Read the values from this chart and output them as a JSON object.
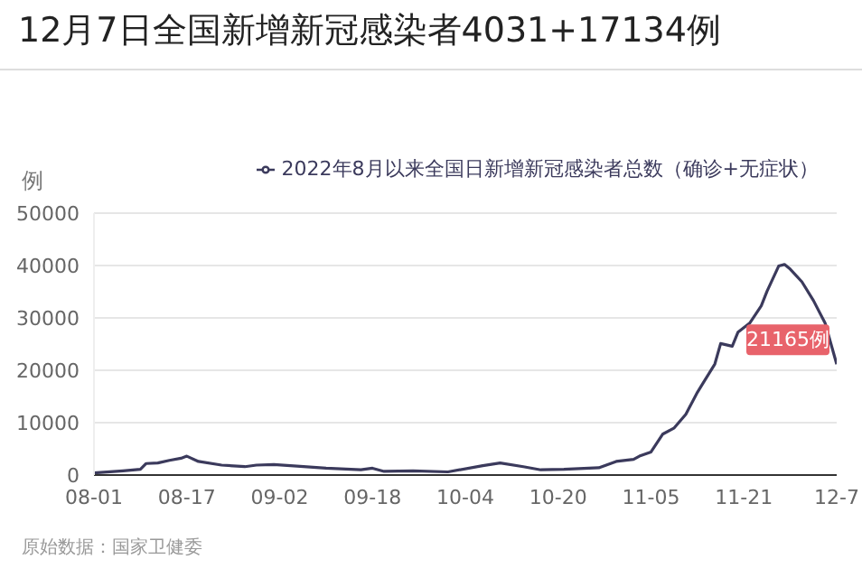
{
  "chart_data": {
    "type": "line",
    "title": "12月7日全国新增新冠感染者4031+17134例",
    "ylabel": "例",
    "x": [
      "2022-08-01",
      "2022-08-06",
      "2022-08-09",
      "2022-08-10",
      "2022-08-12",
      "2022-08-14",
      "2022-08-16",
      "2022-08-17",
      "2022-08-19",
      "2022-08-23",
      "2022-08-27",
      "2022-08-29",
      "2022-09-01",
      "2022-09-05",
      "2022-09-10",
      "2022-09-16",
      "2022-09-18",
      "2022-09-20",
      "2022-09-25",
      "2022-10-01",
      "2022-10-07",
      "2022-10-10",
      "2022-10-14",
      "2022-10-17",
      "2022-10-21",
      "2022-10-27",
      "2022-10-30",
      "2022-11-02",
      "2022-11-03",
      "2022-11-05",
      "2022-11-07",
      "2022-11-09",
      "2022-11-11",
      "2022-11-13",
      "2022-11-14",
      "2022-11-16",
      "2022-11-17",
      "2022-11-19",
      "2022-11-20",
      "2022-11-22",
      "2022-11-24",
      "2022-11-25",
      "2022-11-27",
      "2022-11-28",
      "2022-11-29",
      "2022-12-01",
      "2022-12-03",
      "2022-12-05",
      "2022-12-07"
    ],
    "series": [
      {
        "name": "2022年8月以来全国日新增新冠感染者总数（确诊+无症状）",
        "color": "#3b3a5c",
        "values": [
          400,
          800,
          1100,
          2200,
          2300,
          2800,
          3200,
          3600,
          2600,
          1900,
          1600,
          1900,
          2000,
          1700,
          1300,
          1000,
          1300,
          700,
          800,
          600,
          1800,
          2300,
          1600,
          1000,
          1100,
          1400,
          2600,
          3000,
          3600,
          4400,
          7800,
          9000,
          11600,
          15800,
          17600,
          21200,
          25100,
          24600,
          27300,
          29000,
          32300,
          35100,
          39900,
          40200,
          39300,
          36900,
          33300,
          29000,
          21165
        ]
      }
    ],
    "xlim": [
      "2022-08-01",
      "2022-12-07"
    ],
    "xticks": [
      {
        "value": "2022-08-01",
        "label": "08-01"
      },
      {
        "value": "2022-08-17",
        "label": "08-17"
      },
      {
        "value": "2022-09-02",
        "label": "09-02"
      },
      {
        "value": "2022-09-18",
        "label": "09-18"
      },
      {
        "value": "2022-10-04",
        "label": "10-04"
      },
      {
        "value": "2022-10-20",
        "label": "10-20"
      },
      {
        "value": "2022-11-05",
        "label": "11-05"
      },
      {
        "value": "2022-11-21",
        "label": "11-21"
      },
      {
        "value": "2022-12-07",
        "label": "12-7"
      }
    ],
    "ylim": [
      0,
      50000
    ],
    "yticks": [
      0,
      10000,
      20000,
      30000,
      40000,
      50000
    ],
    "grid": "y",
    "legend": "top right",
    "marker": "none",
    "line_style": "solid",
    "annotations": [
      {
        "text": "21165例",
        "x": "2022-12-07",
        "y": 21165
      },
      "原始数据：国家卫健委"
    ]
  }
}
